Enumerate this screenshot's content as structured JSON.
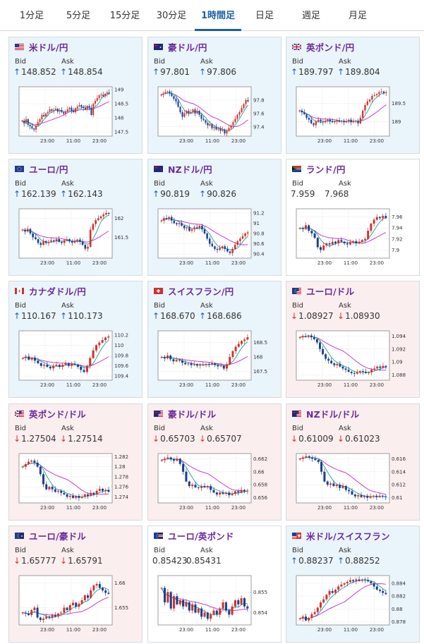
{
  "tabs": [
    "1分足",
    "5分足",
    "15分足",
    "30分足",
    "1時間足",
    "日足",
    "週足",
    "月足"
  ],
  "active_tab": 4,
  "labels": {
    "bid": "Bid",
    "ask": "Ask"
  },
  "colors": {
    "up_bg": "#eaf4fb",
    "down_bg": "#fbeeee",
    "up_arrow": "#1a5fa8",
    "down_arrow": "#d0312d",
    "candle_up": "#d0312d",
    "candle_down": "#1a3f8f",
    "ma_short": "#1aa0a0",
    "ma_long": "#c63ccf"
  },
  "cards": [
    {
      "pair": "米ドル/円",
      "flag": "us-flag",
      "dir": "up",
      "bid": "148.852",
      "ask": "148.854",
      "yticks": [
        "149",
        "148.5",
        "148",
        "147.5"
      ],
      "xticks": [
        "23:00",
        "11:00",
        "23:00"
      ],
      "chart_data": {
        "type": "candlestick",
        "ylim": [
          147.35,
          149.1
        ],
        "closes": [
          147.9,
          147.8,
          147.95,
          147.75,
          147.7,
          147.62,
          147.58,
          147.72,
          147.85,
          147.95,
          148.1,
          148.05,
          148.15,
          148.2,
          148.3,
          148.25,
          148.28,
          148.32,
          148.22,
          148.27,
          148.2,
          148.15,
          148.22,
          148.3,
          148.36,
          148.25,
          148.2,
          148.34,
          148.4,
          148.45,
          148.38,
          148.35,
          148.3,
          148.42,
          148.36,
          148.1,
          148.5,
          148.6,
          148.7,
          148.8,
          148.82,
          148.76,
          148.85,
          148.9,
          148.85
        ]
      }
    },
    {
      "pair": "豪ドル/円",
      "flag": "au-flag",
      "dir": "up",
      "bid": "97.801",
      "ask": "97.806",
      "yticks": [
        "97.8",
        "97.6",
        "97.4"
      ],
      "xticks": [
        "23:00",
        "11:00",
        "23:00"
      ],
      "chart_data": {
        "type": "candlestick",
        "ylim": [
          97.26,
          98.0
        ],
        "closes": [
          97.88,
          97.9,
          97.92,
          97.93,
          97.9,
          97.86,
          97.82,
          97.78,
          97.7,
          97.62,
          97.55,
          97.6,
          97.64,
          97.6,
          97.62,
          97.66,
          97.6,
          97.64,
          97.58,
          97.52,
          97.5,
          97.46,
          97.42,
          97.44,
          97.38,
          97.4,
          97.36,
          97.38,
          97.34,
          97.36,
          97.3,
          97.34,
          97.38,
          97.42,
          97.47,
          97.52,
          97.58,
          97.62,
          97.68,
          97.74,
          97.8,
          97.78
        ]
      }
    },
    {
      "pair": "英ポンド/円",
      "flag": "gb-flag",
      "dir": "up",
      "bid": "189.797",
      "ask": "189.804",
      "yticks": [
        "189.5",
        "189"
      ],
      "xticks": [
        "23:00",
        "11:00",
        "23:00"
      ],
      "chart_data": {
        "type": "candlestick",
        "ylim": [
          188.6,
          189.95
        ],
        "closes": [
          189.3,
          189.25,
          189.2,
          189.1,
          189.05,
          188.95,
          188.9,
          189.0,
          189.05,
          189.0,
          188.98,
          189.02,
          189.05,
          189.0,
          188.98,
          189.0,
          189.03,
          189.0,
          189.02,
          188.98,
          189.0,
          189.05,
          188.98,
          189.0,
          189.02,
          188.95,
          189.1,
          189.3,
          189.45,
          189.55,
          189.6,
          189.7,
          189.72,
          189.75,
          189.8,
          189.82,
          189.78,
          189.8
        ]
      }
    },
    {
      "pair": "ユーロ/円",
      "flag": "eu-flag",
      "dir": "up",
      "bid": "162.139",
      "ask": "162.143",
      "yticks": [
        "162",
        "161.5"
      ],
      "xticks": [
        "23:00",
        "11:00",
        "23:00"
      ],
      "chart_data": {
        "type": "candlestick",
        "ylim": [
          160.95,
          162.25
        ],
        "closes": [
          161.7,
          161.65,
          161.72,
          161.6,
          161.5,
          161.45,
          161.35,
          161.3,
          161.4,
          161.35,
          161.38,
          161.42,
          161.4,
          161.45,
          161.38,
          161.35,
          161.42,
          161.45,
          161.4,
          161.36,
          161.4,
          161.44,
          161.38,
          161.3,
          161.2,
          161.25,
          161.7,
          161.85,
          161.95,
          162.0,
          162.05,
          162.1,
          162.14,
          162.12
        ]
      }
    },
    {
      "pair": "NZドル/円",
      "flag": "nz-flag",
      "dir": "up",
      "bid": "90.819",
      "ask": "90.826",
      "yticks": [
        "91.2",
        "91",
        "90.8",
        "90.6",
        "90.4"
      ],
      "xticks": [
        "23:00",
        "11:00",
        "23:00"
      ],
      "chart_data": {
        "type": "candlestick",
        "ylim": [
          90.32,
          91.28
        ],
        "closes": [
          91.05,
          91.1,
          91.08,
          91.12,
          91.05,
          91.0,
          90.98,
          91.0,
          90.95,
          90.9,
          90.92,
          90.85,
          90.88,
          90.92,
          90.9,
          90.95,
          90.88,
          90.8,
          90.7,
          90.6,
          90.55,
          90.5,
          90.48,
          90.52,
          90.55,
          90.5,
          90.45,
          90.42,
          90.5,
          90.58,
          90.65,
          90.7,
          90.75,
          90.8,
          90.82
        ]
      }
    },
    {
      "pair": "ランド/円",
      "flag": "za-flag",
      "dir": "flat",
      "bid": "7.959",
      "ask": "7.968",
      "yticks": [
        "7.96",
        "7.94",
        "7.92",
        "7.9"
      ],
      "xticks": [
        "23:00",
        "11:00",
        "23:00"
      ],
      "chart_data": {
        "type": "candlestick",
        "ylim": [
          7.885,
          7.975
        ],
        "closes": [
          7.94,
          7.938,
          7.945,
          7.935,
          7.93,
          7.922,
          7.905,
          7.9,
          7.908,
          7.912,
          7.91,
          7.915,
          7.912,
          7.918,
          7.915,
          7.912,
          7.91,
          7.914,
          7.916,
          7.912,
          7.915,
          7.918,
          7.92,
          7.935,
          7.948,
          7.955,
          7.96,
          7.958,
          7.962,
          7.958
        ]
      }
    },
    {
      "pair": "カナダドル/円",
      "flag": "ca-flag",
      "dir": "up",
      "bid": "110.167",
      "ask": "110.173",
      "yticks": [
        "110.2",
        "110",
        "109.8",
        "109.6",
        "109.4"
      ],
      "xticks": [
        "23:00",
        "11:00",
        "23:00"
      ],
      "chart_data": {
        "type": "candlestick",
        "ylim": [
          109.32,
          110.28
        ],
        "closes": [
          109.75,
          109.78,
          109.72,
          109.76,
          109.7,
          109.65,
          109.6,
          109.62,
          109.58,
          109.55,
          109.6,
          109.62,
          109.58,
          109.62,
          109.65,
          109.6,
          109.64,
          109.62,
          109.58,
          109.52,
          109.48,
          109.6,
          109.75,
          109.9,
          110.0,
          110.05,
          110.1,
          110.15,
          110.17
        ]
      }
    },
    {
      "pair": "スイスフラン/円",
      "flag": "ch-flag",
      "dir": "up",
      "bid": "168.670",
      "ask": "168.686",
      "yticks": [
        "168.5",
        "168",
        "167.5"
      ],
      "xticks": [
        "23:00",
        "11:00",
        "23:00"
      ],
      "chart_data": {
        "type": "candlestick",
        "ylim": [
          167.2,
          168.9
        ],
        "closes": [
          168.0,
          167.95,
          168.05,
          167.92,
          167.85,
          167.9,
          167.88,
          167.8,
          167.75,
          167.78,
          167.72,
          167.75,
          167.7,
          167.74,
          167.72,
          167.76,
          167.74,
          167.78,
          167.72,
          167.68,
          167.7,
          167.6,
          167.75,
          168.0,
          168.2,
          168.35,
          168.45,
          168.55,
          168.6,
          168.68
        ]
      }
    },
    {
      "pair": "ユーロ/ドル",
      "flag": "euus-flag",
      "dir": "down",
      "bid": "1.08927",
      "ask": "1.08930",
      "yticks": [
        "1.094",
        "1.092",
        "1.09",
        "1.088"
      ],
      "xticks": [
        "23:00",
        "11:00",
        "23:00"
      ],
      "chart_data": {
        "type": "candlestick",
        "ylim": [
          1.0872,
          1.0948
        ],
        "closes": [
          1.0938,
          1.094,
          1.0939,
          1.0941,
          1.0938,
          1.0935,
          1.093,
          1.092,
          1.0912,
          1.0905,
          1.0902,
          1.0898,
          1.0895,
          1.0897,
          1.0893,
          1.089,
          1.0888,
          1.0885,
          1.0883,
          1.0882,
          1.0884,
          1.0886,
          1.0885,
          1.0883,
          1.0884,
          1.0888,
          1.089,
          1.0893,
          1.0891,
          1.0894,
          1.0892
        ]
      }
    },
    {
      "pair": "英ポンド/ドル",
      "flag": "gbus-flag",
      "dir": "down",
      "bid": "1.27504",
      "ask": "1.27514",
      "yticks": [
        "1.282",
        "1.28",
        "1.278",
        "1.276",
        "1.274"
      ],
      "xticks": [
        "23:00",
        "11:00",
        "23:00"
      ],
      "chart_data": {
        "type": "candlestick",
        "ylim": [
          1.2728,
          1.2826
        ],
        "closes": [
          1.28,
          1.2805,
          1.281,
          1.2812,
          1.2808,
          1.28,
          1.2785,
          1.2765,
          1.2755,
          1.276,
          1.2755,
          1.275,
          1.2752,
          1.2748,
          1.2745,
          1.274,
          1.2742,
          1.2738,
          1.2742,
          1.2738,
          1.274,
          1.2745,
          1.2742,
          1.2748,
          1.2745,
          1.2752,
          1.2756,
          1.2752,
          1.2754,
          1.275
        ]
      }
    },
    {
      "pair": "豪ドル/ドル",
      "flag": "auus-flag",
      "dir": "down",
      "bid": "0.65703",
      "ask": "0.65707",
      "yticks": [
        "0.662",
        "0.66",
        "0.658",
        "0.656"
      ],
      "xticks": [
        "23:00",
        "11:00",
        "23:00"
      ],
      "chart_data": {
        "type": "candlestick",
        "ylim": [
          0.6552,
          0.6628
        ],
        "closes": [
          0.6618,
          0.662,
          0.6622,
          0.6619,
          0.6617,
          0.662,
          0.6612,
          0.66,
          0.6585,
          0.6578,
          0.658,
          0.6576,
          0.6575,
          0.6578,
          0.6576,
          0.6578,
          0.6572,
          0.6568,
          0.6565,
          0.6568,
          0.6566,
          0.6568,
          0.6564,
          0.6566,
          0.657,
          0.6568,
          0.6572,
          0.657,
          0.6571
        ]
      }
    },
    {
      "pair": "NZドル/ドル",
      "flag": "nzus-flag",
      "dir": "down",
      "bid": "0.61009",
      "ask": "0.61023",
      "yticks": [
        "0.616",
        "0.614",
        "0.612",
        "0.61"
      ],
      "xticks": [
        "23:00",
        "11:00",
        "23:00"
      ],
      "chart_data": {
        "type": "candlestick",
        "ylim": [
          0.6092,
          0.6168
        ],
        "closes": [
          0.616,
          0.6162,
          0.6164,
          0.6162,
          0.616,
          0.6158,
          0.6155,
          0.614,
          0.6125,
          0.612,
          0.6122,
          0.6118,
          0.612,
          0.6115,
          0.6118,
          0.6112,
          0.611,
          0.6105,
          0.6102,
          0.6104,
          0.6101,
          0.6103,
          0.61,
          0.6102,
          0.6103,
          0.6101,
          0.6103,
          0.6102,
          0.6101
        ]
      }
    },
    {
      "pair": "ユーロ/豪ドル",
      "flag": "euau-flag",
      "dir": "down",
      "bid": "1.65777",
      "ask": "1.65791",
      "yticks": [
        "1.66",
        "1.655"
      ],
      "xticks": [
        "23:00",
        "11:00",
        "23:00"
      ],
      "chart_data": {
        "type": "candlestick",
        "ylim": [
          1.6515,
          1.6615
        ],
        "closes": [
          1.654,
          1.6538,
          1.6535,
          1.6545,
          1.655,
          1.653,
          1.6525,
          1.6528,
          1.6532,
          1.653,
          1.6535,
          1.6532,
          1.6538,
          1.654,
          1.655,
          1.6545,
          1.6555,
          1.656,
          1.6552,
          1.6558,
          1.6565,
          1.6575,
          1.657,
          1.6585,
          1.6595,
          1.6598,
          1.659,
          1.6585,
          1.658,
          1.6578
        ]
      }
    },
    {
      "pair": "ユーロ/英ポンド",
      "flag": "eugb-flag",
      "dir": "flat",
      "bid": "0.85423",
      "ask": "0.85431",
      "yticks": [
        "0.855",
        "0.854"
      ],
      "xticks": [
        "23:00",
        "11:00",
        "23:00"
      ],
      "chart_data": {
        "type": "candlestick",
        "ylim": [
          0.8534,
          0.8558
        ],
        "closes": [
          0.8552,
          0.8545,
          0.855,
          0.8542,
          0.8548,
          0.8544,
          0.8546,
          0.8543,
          0.8545,
          0.8541,
          0.8544,
          0.854,
          0.8542,
          0.8538,
          0.854,
          0.8537,
          0.8539,
          0.8541,
          0.8539,
          0.8542,
          0.8545,
          0.8541,
          0.8539,
          0.8543,
          0.8546,
          0.8544,
          0.8547,
          0.8543,
          0.8542
        ]
      }
    },
    {
      "pair": "米ドル/スイスフラン",
      "flag": "usch-flag",
      "dir": "up",
      "bid": "0.88237",
      "ask": "0.88252",
      "yticks": [
        "0.884",
        "0.882",
        "0.88",
        "0.878"
      ],
      "xticks": [
        "23:00",
        "11:00",
        "23:00"
      ],
      "chart_data": {
        "type": "candlestick",
        "ylim": [
          0.8775,
          0.8852
        ],
        "closes": [
          0.8785,
          0.8788,
          0.8782,
          0.8786,
          0.8792,
          0.8795,
          0.8802,
          0.881,
          0.8815,
          0.8822,
          0.8828,
          0.8825,
          0.883,
          0.8835,
          0.8838,
          0.884,
          0.8842,
          0.8845,
          0.8843,
          0.8846,
          0.8844,
          0.8846,
          0.8845,
          0.8843,
          0.884,
          0.8835,
          0.883,
          0.8828,
          0.8825,
          0.8823
        ]
      }
    }
  ]
}
